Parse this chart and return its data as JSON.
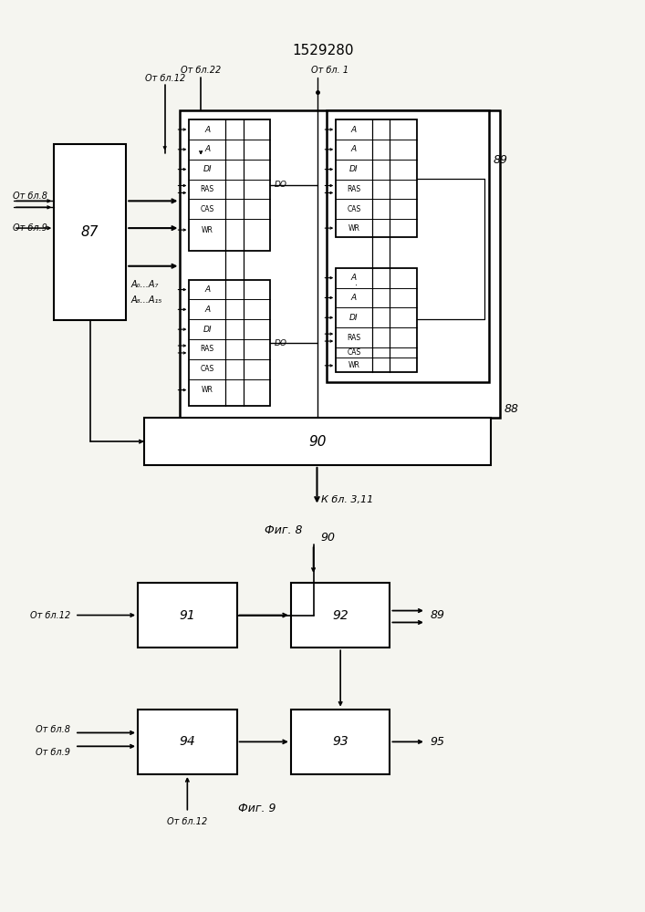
{
  "title": "1529280",
  "bg_color": "#f5f5f0",
  "line_color": "#1a1a1a",
  "fig8_caption": "Фиг. 8",
  "fig9_caption": "Фиг. 9"
}
